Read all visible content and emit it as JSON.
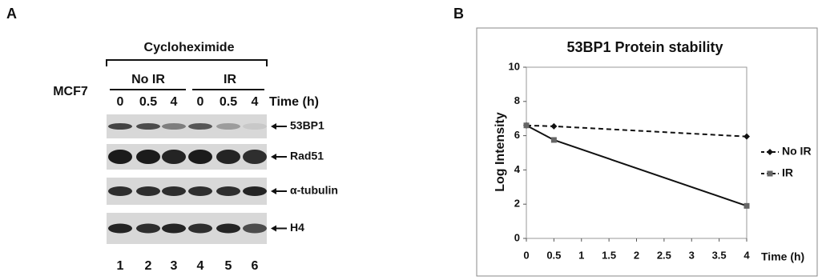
{
  "panel_labels": [
    "A",
    "B"
  ],
  "blot": {
    "treatment": "Cycloheximide",
    "cell_line": "MCF7",
    "groups": [
      "No IR",
      "IR"
    ],
    "times": [
      "0",
      "0.5",
      "4",
      "0",
      "0.5",
      "4"
    ],
    "time_label": "Time (h)",
    "proteins": [
      "53BP1",
      "Rad51",
      "α-tubulin",
      "H4"
    ],
    "lanes": [
      "1",
      "2",
      "3",
      "4",
      "5",
      "6"
    ]
  },
  "chart_data": {
    "type": "line",
    "title": "53BP1 Protein stability",
    "y_label": "Log Intensity",
    "x_label": "Time (h)",
    "x": [
      0,
      0.5,
      4
    ],
    "series": [
      {
        "name": "No IR",
        "color": "#111111",
        "dash": true,
        "marker": "diamond",
        "values": [
          6.6,
          6.55,
          5.95
        ]
      },
      {
        "name": "IR",
        "color": "#111111",
        "dash": false,
        "marker": "square",
        "values": [
          6.6,
          5.75,
          1.9
        ]
      }
    ],
    "xlim": [
      0,
      4
    ],
    "xticks": [
      0,
      0.5,
      1,
      1.5,
      2,
      2.5,
      3,
      3.5,
      4
    ],
    "ylim": [
      0,
      10
    ],
    "yticks": [
      0,
      2,
      4,
      6,
      8,
      10
    ],
    "legend": "right"
  }
}
